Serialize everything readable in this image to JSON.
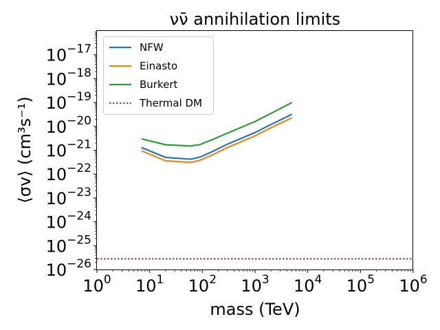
{
  "chart_data": {
    "type": "line",
    "title": "νν̄ annihilation limits",
    "xlabel": "mass (TeV)",
    "ylabel": "⟨σv⟩ (cm³s⁻¹)",
    "xscale": "log",
    "yscale": "log",
    "xlim": [
      1,
      1000000
    ],
    "ylim": [
      1e-26,
      1e-16
    ],
    "x_ticks": [
      {
        "value": 1,
        "base": "10",
        "exp": "0"
      },
      {
        "value": 10,
        "base": "10",
        "exp": "1"
      },
      {
        "value": 100,
        "base": "10",
        "exp": "2"
      },
      {
        "value": 1000,
        "base": "10",
        "exp": "3"
      },
      {
        "value": 10000,
        "base": "10",
        "exp": "4"
      },
      {
        "value": 100000,
        "base": "10",
        "exp": "5"
      },
      {
        "value": 1000000,
        "base": "10",
        "exp": "6"
      }
    ],
    "y_ticks": [
      {
        "value": 1e-26,
        "base": "10",
        "exp": "−26"
      },
      {
        "value": 1e-25,
        "base": "10",
        "exp": "−25"
      },
      {
        "value": 1e-24,
        "base": "10",
        "exp": "−24"
      },
      {
        "value": 1e-23,
        "base": "10",
        "exp": "−23"
      },
      {
        "value": 1e-22,
        "base": "10",
        "exp": "−22"
      },
      {
        "value": 1e-21,
        "base": "10",
        "exp": "−21"
      },
      {
        "value": 1e-20,
        "base": "10",
        "exp": "−20"
      },
      {
        "value": 1e-19,
        "base": "10",
        "exp": "−19"
      },
      {
        "value": 1e-18,
        "base": "10",
        "exp": "−18"
      },
      {
        "value": 1e-17,
        "base": "10",
        "exp": "−17"
      }
    ],
    "legend_location": "upper-left",
    "series": [
      {
        "name": "NFW",
        "color": "#1f77b4",
        "style": "solid",
        "x": [
          7,
          20,
          60,
          70,
          90,
          100,
          150,
          300,
          1000,
          2000,
          5000
        ],
        "y": [
          1.3e-21,
          5e-22,
          4.2e-22,
          4.5e-22,
          5.2e-22,
          5.7e-22,
          8.5e-22,
          1.8e-21,
          5.5e-21,
          1.2e-20,
          3.2e-20
        ]
      },
      {
        "name": "Einasto",
        "color": "#ff7f0e",
        "style": "solid",
        "x": [
          7,
          20,
          60,
          70,
          90,
          100,
          150,
          300,
          1000,
          2000,
          5000
        ],
        "y": [
          9.5e-22,
          3.6e-22,
          3.1e-22,
          3.3e-22,
          3.8e-22,
          4.2e-22,
          6.2e-22,
          1.3e-21,
          4e-21,
          8.8e-21,
          2.3e-20
        ]
      },
      {
        "name": "Burkert",
        "color": "#2ca02c",
        "style": "solid",
        "x": [
          7,
          20,
          60,
          70,
          90,
          100,
          150,
          300,
          1000,
          2000,
          5000
        ],
        "y": [
          3e-21,
          1.7e-21,
          1.5e-21,
          1.6e-21,
          1.7e-21,
          1.9e-21,
          2.7e-21,
          5.2e-21,
          1.6e-20,
          3.5e-20,
          1e-19
        ]
      },
      {
        "name": "Thermal DM",
        "color": "#8c564b",
        "style": "dotted",
        "x": [
          1,
          1000000
        ],
        "y": [
          2.8e-26,
          2.8e-26
        ]
      }
    ]
  }
}
